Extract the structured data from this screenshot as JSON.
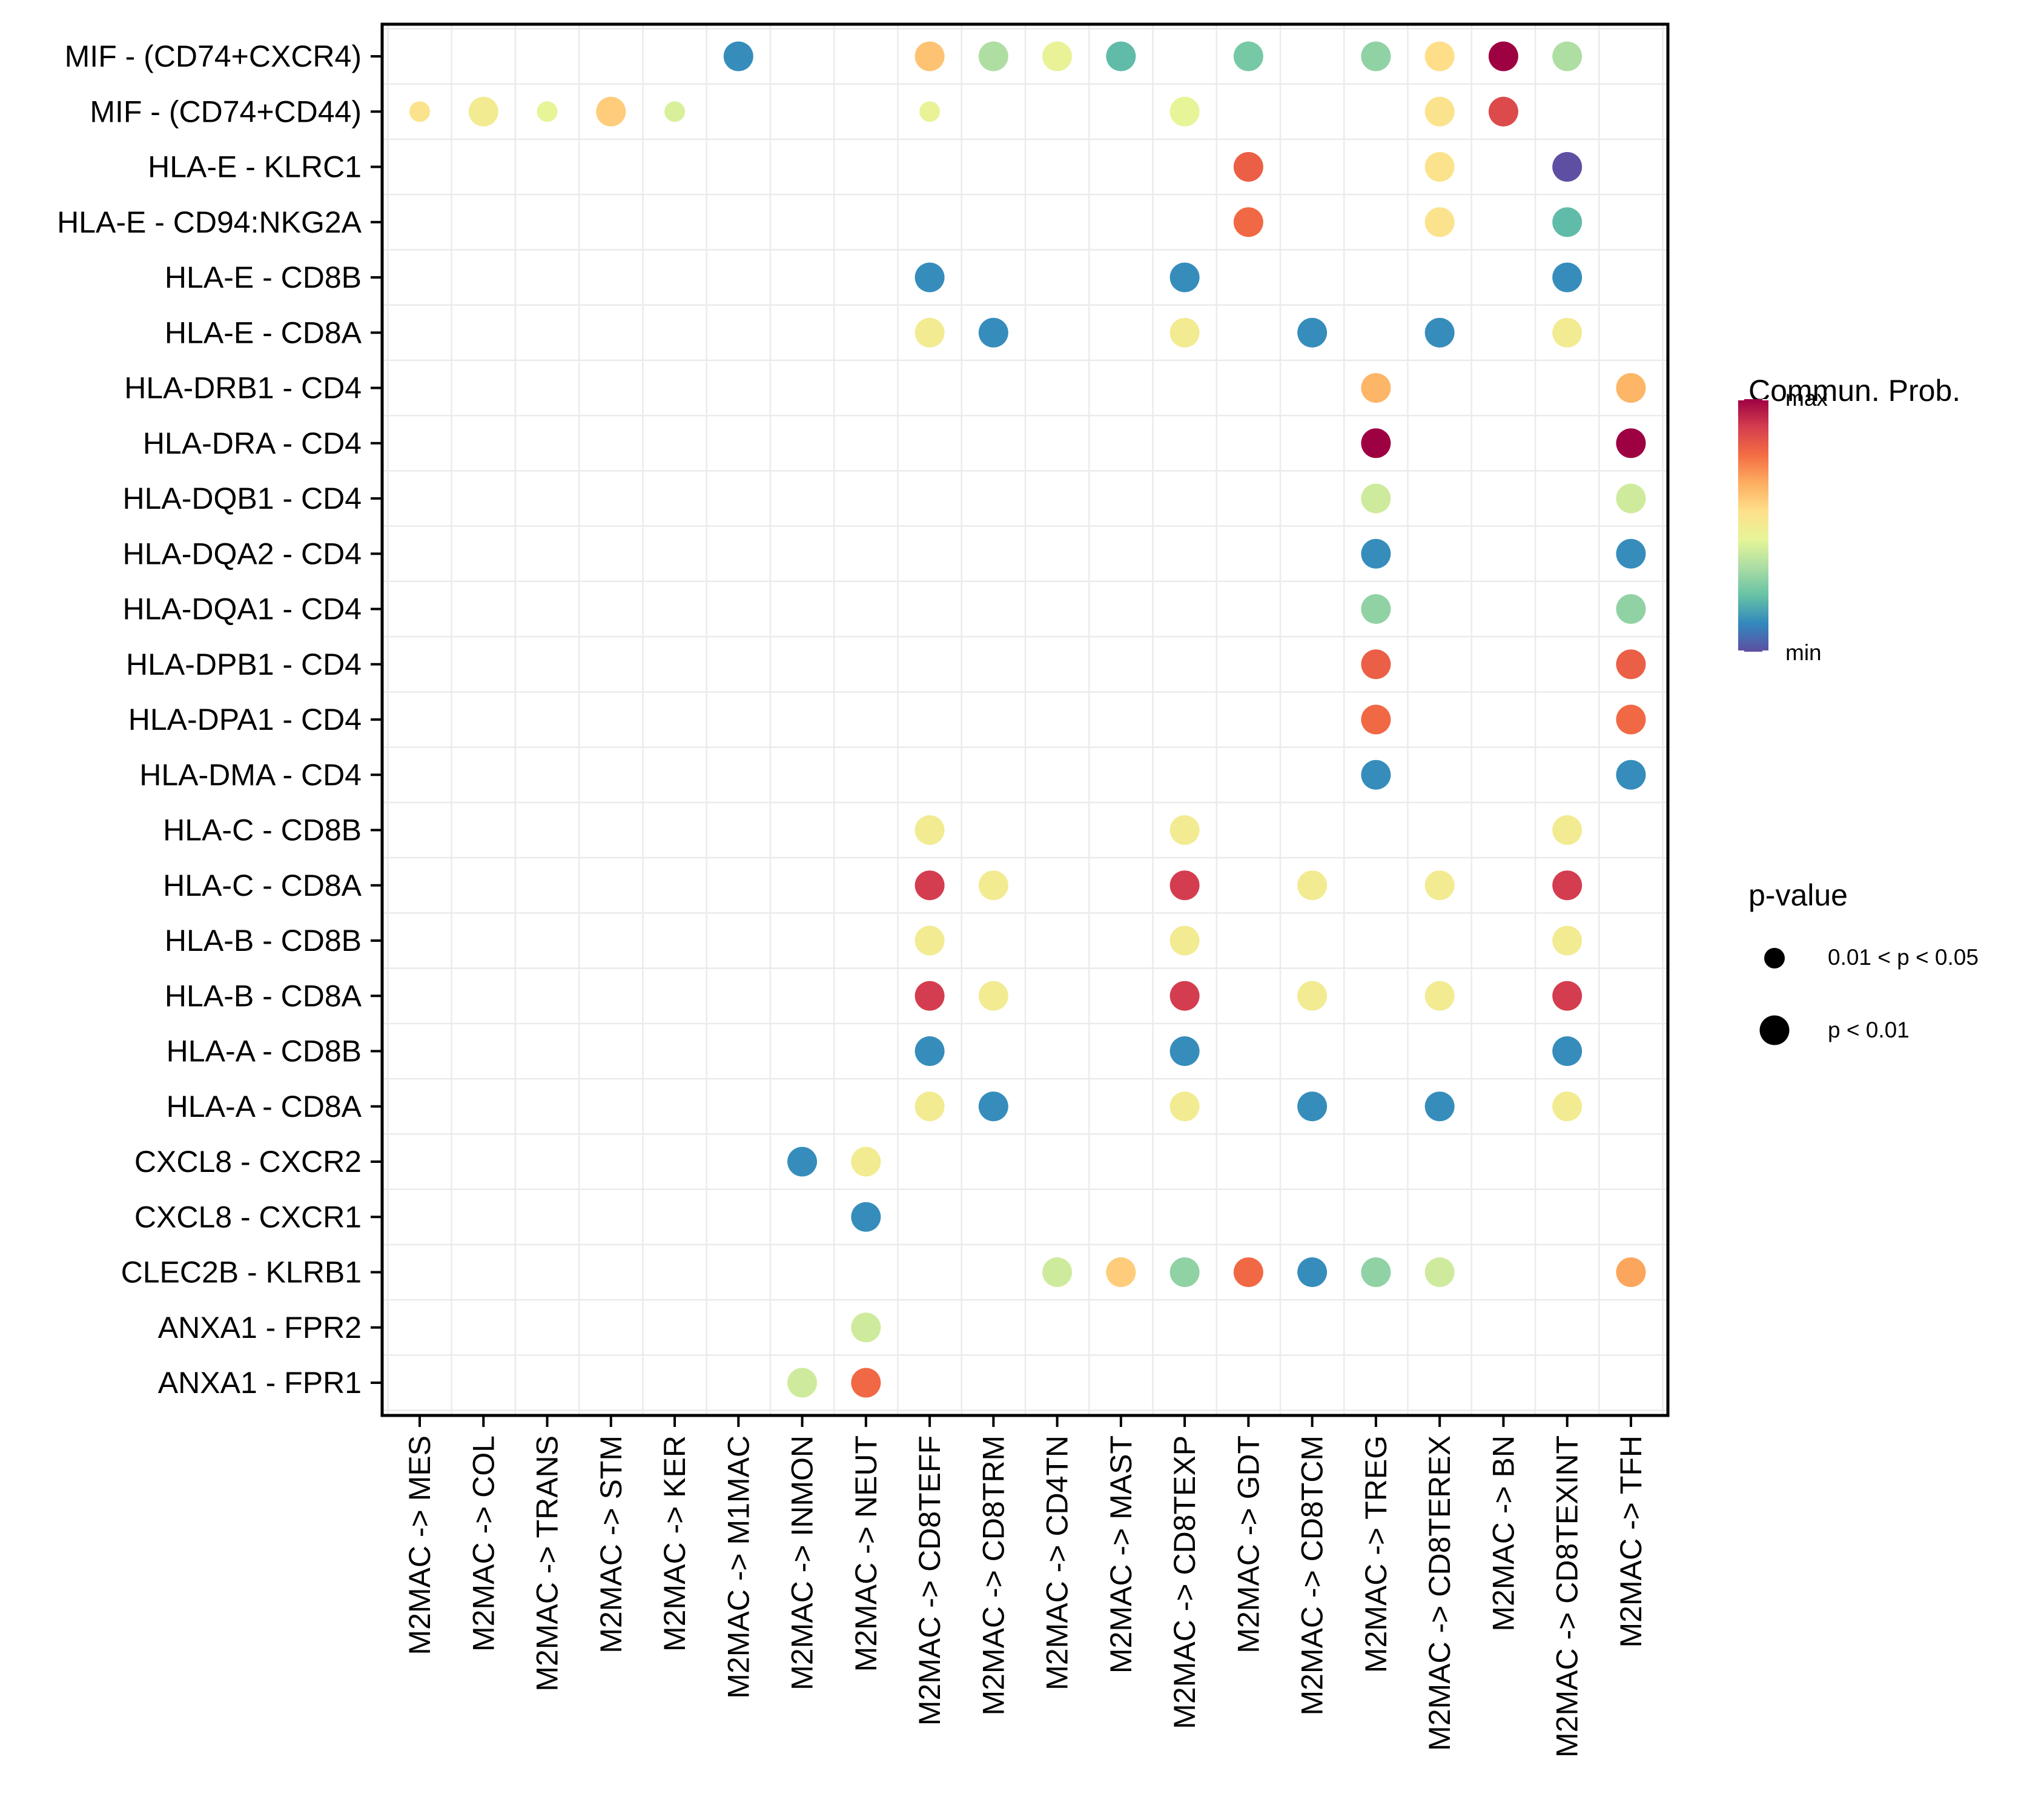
{
  "chart_data": {
    "type": "scatter",
    "subtype": "dot-plot",
    "title": "",
    "xlabel": "",
    "ylabel": "",
    "x_categories": [
      "M2MAC -> MES",
      "M2MAC -> COL",
      "M2MAC -> TRANS",
      "M2MAC -> STM",
      "M2MAC -> KER",
      "M2MAC -> M1MAC",
      "M2MAC -> INMON",
      "M2MAC -> NEUT",
      "M2MAC -> CD8TEFF",
      "M2MAC -> CD8TRM",
      "M2MAC -> CD4TN",
      "M2MAC -> MAST",
      "M2MAC -> CD8TEXP",
      "M2MAC -> GDT",
      "M2MAC -> CD8TCM",
      "M2MAC -> TREG",
      "M2MAC -> CD8TEREX",
      "M2MAC -> BN",
      "M2MAC -> CD8TEXINT",
      "M2MAC -> TFH"
    ],
    "y_categories": [
      "MIF - (CD74+CXCR4)",
      "MIF - (CD74+CD44)",
      "HLA-E - KLRC1",
      "HLA-E - CD94:NKG2A",
      "HLA-E - CD8B",
      "HLA-E - CD8A",
      "HLA-DRB1 - CD4",
      "HLA-DRA - CD4",
      "HLA-DQB1 - CD4",
      "HLA-DQA2 - CD4",
      "HLA-DQA1 - CD4",
      "HLA-DPB1 - CD4",
      "HLA-DPA1 - CD4",
      "HLA-DMA - CD4",
      "HLA-C - CD8B",
      "HLA-C - CD8A",
      "HLA-B - CD8B",
      "HLA-B - CD8A",
      "HLA-A - CD8B",
      "HLA-A - CD8A",
      "CXCL8 - CXCR2",
      "CXCL8 - CXCR1",
      "CLEC2B - KLRB1",
      "ANXA1 - FPR2",
      "ANXA1 - FPR1"
    ],
    "color_scale": {
      "title": "Commun. Prob.",
      "palette": "Spectral",
      "min_label": "min",
      "max_label": "max",
      "colors": [
        "#5E4FA2",
        "#3288BD",
        "#66C2A5",
        "#ABDDA4",
        "#E6F598",
        "#FEE08B",
        "#FDAE61",
        "#F46D43",
        "#D53E4F",
        "#9E0142"
      ]
    },
    "size_legend": {
      "title": "p-value",
      "entries": [
        {
          "label": "0.01 < p < 0.05",
          "level": "small"
        },
        {
          "label": "p < 0.01",
          "level": "large"
        }
      ]
    },
    "value_note": "prob is relative commun. probability on the min-max scale (0=min, 1=max), estimated from color",
    "points": [
      {
        "y": 0,
        "x": 5,
        "prob": 0.12,
        "pval": "large"
      },
      {
        "y": 0,
        "x": 8,
        "prob": 0.62,
        "pval": "large"
      },
      {
        "y": 0,
        "x": 9,
        "prob": 0.34,
        "pval": "large"
      },
      {
        "y": 0,
        "x": 10,
        "prob": 0.46,
        "pval": "large"
      },
      {
        "y": 0,
        "x": 11,
        "prob": 0.21,
        "pval": "large"
      },
      {
        "y": 0,
        "x": 13,
        "prob": 0.25,
        "pval": "large"
      },
      {
        "y": 0,
        "x": 15,
        "prob": 0.29,
        "pval": "large"
      },
      {
        "y": 0,
        "x": 16,
        "prob": 0.56,
        "pval": "large"
      },
      {
        "y": 0,
        "x": 17,
        "prob": 1.0,
        "pval": "large"
      },
      {
        "y": 0,
        "x": 18,
        "prob": 0.34,
        "pval": "large"
      },
      {
        "y": 1,
        "x": 0,
        "prob": 0.54,
        "pval": "small"
      },
      {
        "y": 1,
        "x": 1,
        "prob": 0.5,
        "pval": "large"
      },
      {
        "y": 1,
        "x": 2,
        "prob": 0.45,
        "pval": "small"
      },
      {
        "y": 1,
        "x": 3,
        "prob": 0.6,
        "pval": "large"
      },
      {
        "y": 1,
        "x": 4,
        "prob": 0.42,
        "pval": "small"
      },
      {
        "y": 1,
        "x": 8,
        "prob": 0.46,
        "pval": "small"
      },
      {
        "y": 1,
        "x": 12,
        "prob": 0.45,
        "pval": "large"
      },
      {
        "y": 1,
        "x": 16,
        "prob": 0.54,
        "pval": "large"
      },
      {
        "y": 1,
        "x": 17,
        "prob": 0.86,
        "pval": "large"
      },
      {
        "y": 2,
        "x": 13,
        "prob": 0.81,
        "pval": "large"
      },
      {
        "y": 2,
        "x": 16,
        "prob": 0.54,
        "pval": "large"
      },
      {
        "y": 2,
        "x": 18,
        "prob": 0.0,
        "pval": "large"
      },
      {
        "y": 3,
        "x": 13,
        "prob": 0.79,
        "pval": "large"
      },
      {
        "y": 3,
        "x": 16,
        "prob": 0.54,
        "pval": "large"
      },
      {
        "y": 3,
        "x": 18,
        "prob": 0.21,
        "pval": "large"
      },
      {
        "y": 4,
        "x": 8,
        "prob": 0.12,
        "pval": "large"
      },
      {
        "y": 4,
        "x": 12,
        "prob": 0.12,
        "pval": "large"
      },
      {
        "y": 4,
        "x": 18,
        "prob": 0.12,
        "pval": "large"
      },
      {
        "y": 5,
        "x": 8,
        "prob": 0.5,
        "pval": "large"
      },
      {
        "y": 5,
        "x": 9,
        "prob": 0.12,
        "pval": "large"
      },
      {
        "y": 5,
        "x": 12,
        "prob": 0.5,
        "pval": "large"
      },
      {
        "y": 5,
        "x": 14,
        "prob": 0.12,
        "pval": "large"
      },
      {
        "y": 5,
        "x": 16,
        "prob": 0.12,
        "pval": "large"
      },
      {
        "y": 5,
        "x": 18,
        "prob": 0.5,
        "pval": "large"
      },
      {
        "y": 6,
        "x": 15,
        "prob": 0.65,
        "pval": "large"
      },
      {
        "y": 6,
        "x": 19,
        "prob": 0.65,
        "pval": "large"
      },
      {
        "y": 7,
        "x": 15,
        "prob": 1.0,
        "pval": "large"
      },
      {
        "y": 7,
        "x": 19,
        "prob": 1.0,
        "pval": "large"
      },
      {
        "y": 8,
        "x": 15,
        "prob": 0.4,
        "pval": "large"
      },
      {
        "y": 8,
        "x": 19,
        "prob": 0.4,
        "pval": "large"
      },
      {
        "y": 9,
        "x": 15,
        "prob": 0.12,
        "pval": "large"
      },
      {
        "y": 9,
        "x": 19,
        "prob": 0.12,
        "pval": "large"
      },
      {
        "y": 10,
        "x": 15,
        "prob": 0.29,
        "pval": "large"
      },
      {
        "y": 10,
        "x": 19,
        "prob": 0.29,
        "pval": "large"
      },
      {
        "y": 11,
        "x": 15,
        "prob": 0.81,
        "pval": "large"
      },
      {
        "y": 11,
        "x": 19,
        "prob": 0.81,
        "pval": "large"
      },
      {
        "y": 12,
        "x": 15,
        "prob": 0.79,
        "pval": "large"
      },
      {
        "y": 12,
        "x": 19,
        "prob": 0.79,
        "pval": "large"
      },
      {
        "y": 13,
        "x": 15,
        "prob": 0.12,
        "pval": "large"
      },
      {
        "y": 13,
        "x": 19,
        "prob": 0.12,
        "pval": "large"
      },
      {
        "y": 14,
        "x": 8,
        "prob": 0.5,
        "pval": "large"
      },
      {
        "y": 14,
        "x": 12,
        "prob": 0.5,
        "pval": "large"
      },
      {
        "y": 14,
        "x": 18,
        "prob": 0.5,
        "pval": "large"
      },
      {
        "y": 15,
        "x": 8,
        "prob": 0.89,
        "pval": "large"
      },
      {
        "y": 15,
        "x": 9,
        "prob": 0.5,
        "pval": "large"
      },
      {
        "y": 15,
        "x": 12,
        "prob": 0.89,
        "pval": "large"
      },
      {
        "y": 15,
        "x": 14,
        "prob": 0.5,
        "pval": "large"
      },
      {
        "y": 15,
        "x": 16,
        "prob": 0.5,
        "pval": "large"
      },
      {
        "y": 15,
        "x": 18,
        "prob": 0.89,
        "pval": "large"
      },
      {
        "y": 16,
        "x": 8,
        "prob": 0.5,
        "pval": "large"
      },
      {
        "y": 16,
        "x": 12,
        "prob": 0.5,
        "pval": "large"
      },
      {
        "y": 16,
        "x": 18,
        "prob": 0.5,
        "pval": "large"
      },
      {
        "y": 17,
        "x": 8,
        "prob": 0.89,
        "pval": "large"
      },
      {
        "y": 17,
        "x": 9,
        "prob": 0.5,
        "pval": "large"
      },
      {
        "y": 17,
        "x": 12,
        "prob": 0.89,
        "pval": "large"
      },
      {
        "y": 17,
        "x": 14,
        "prob": 0.5,
        "pval": "large"
      },
      {
        "y": 17,
        "x": 16,
        "prob": 0.5,
        "pval": "large"
      },
      {
        "y": 17,
        "x": 18,
        "prob": 0.89,
        "pval": "large"
      },
      {
        "y": 18,
        "x": 8,
        "prob": 0.12,
        "pval": "large"
      },
      {
        "y": 18,
        "x": 12,
        "prob": 0.12,
        "pval": "large"
      },
      {
        "y": 18,
        "x": 18,
        "prob": 0.12,
        "pval": "large"
      },
      {
        "y": 19,
        "x": 8,
        "prob": 0.5,
        "pval": "large"
      },
      {
        "y": 19,
        "x": 9,
        "prob": 0.12,
        "pval": "large"
      },
      {
        "y": 19,
        "x": 12,
        "prob": 0.5,
        "pval": "large"
      },
      {
        "y": 19,
        "x": 14,
        "prob": 0.12,
        "pval": "large"
      },
      {
        "y": 19,
        "x": 16,
        "prob": 0.12,
        "pval": "large"
      },
      {
        "y": 19,
        "x": 18,
        "prob": 0.5,
        "pval": "large"
      },
      {
        "y": 20,
        "x": 6,
        "prob": 0.12,
        "pval": "large"
      },
      {
        "y": 20,
        "x": 7,
        "prob": 0.5,
        "pval": "large"
      },
      {
        "y": 21,
        "x": 7,
        "prob": 0.12,
        "pval": "large"
      },
      {
        "y": 22,
        "x": 10,
        "prob": 0.4,
        "pval": "large"
      },
      {
        "y": 22,
        "x": 11,
        "prob": 0.6,
        "pval": "large"
      },
      {
        "y": 22,
        "x": 12,
        "prob": 0.29,
        "pval": "large"
      },
      {
        "y": 22,
        "x": 13,
        "prob": 0.79,
        "pval": "large"
      },
      {
        "y": 22,
        "x": 14,
        "prob": 0.12,
        "pval": "large"
      },
      {
        "y": 22,
        "x": 15,
        "prob": 0.29,
        "pval": "large"
      },
      {
        "y": 22,
        "x": 16,
        "prob": 0.4,
        "pval": "large"
      },
      {
        "y": 22,
        "x": 19,
        "prob": 0.68,
        "pval": "large"
      },
      {
        "y": 23,
        "x": 7,
        "prob": 0.4,
        "pval": "large"
      },
      {
        "y": 24,
        "x": 6,
        "prob": 0.4,
        "pval": "large"
      },
      {
        "y": 24,
        "x": 7,
        "prob": 0.79,
        "pval": "large"
      }
    ]
  }
}
